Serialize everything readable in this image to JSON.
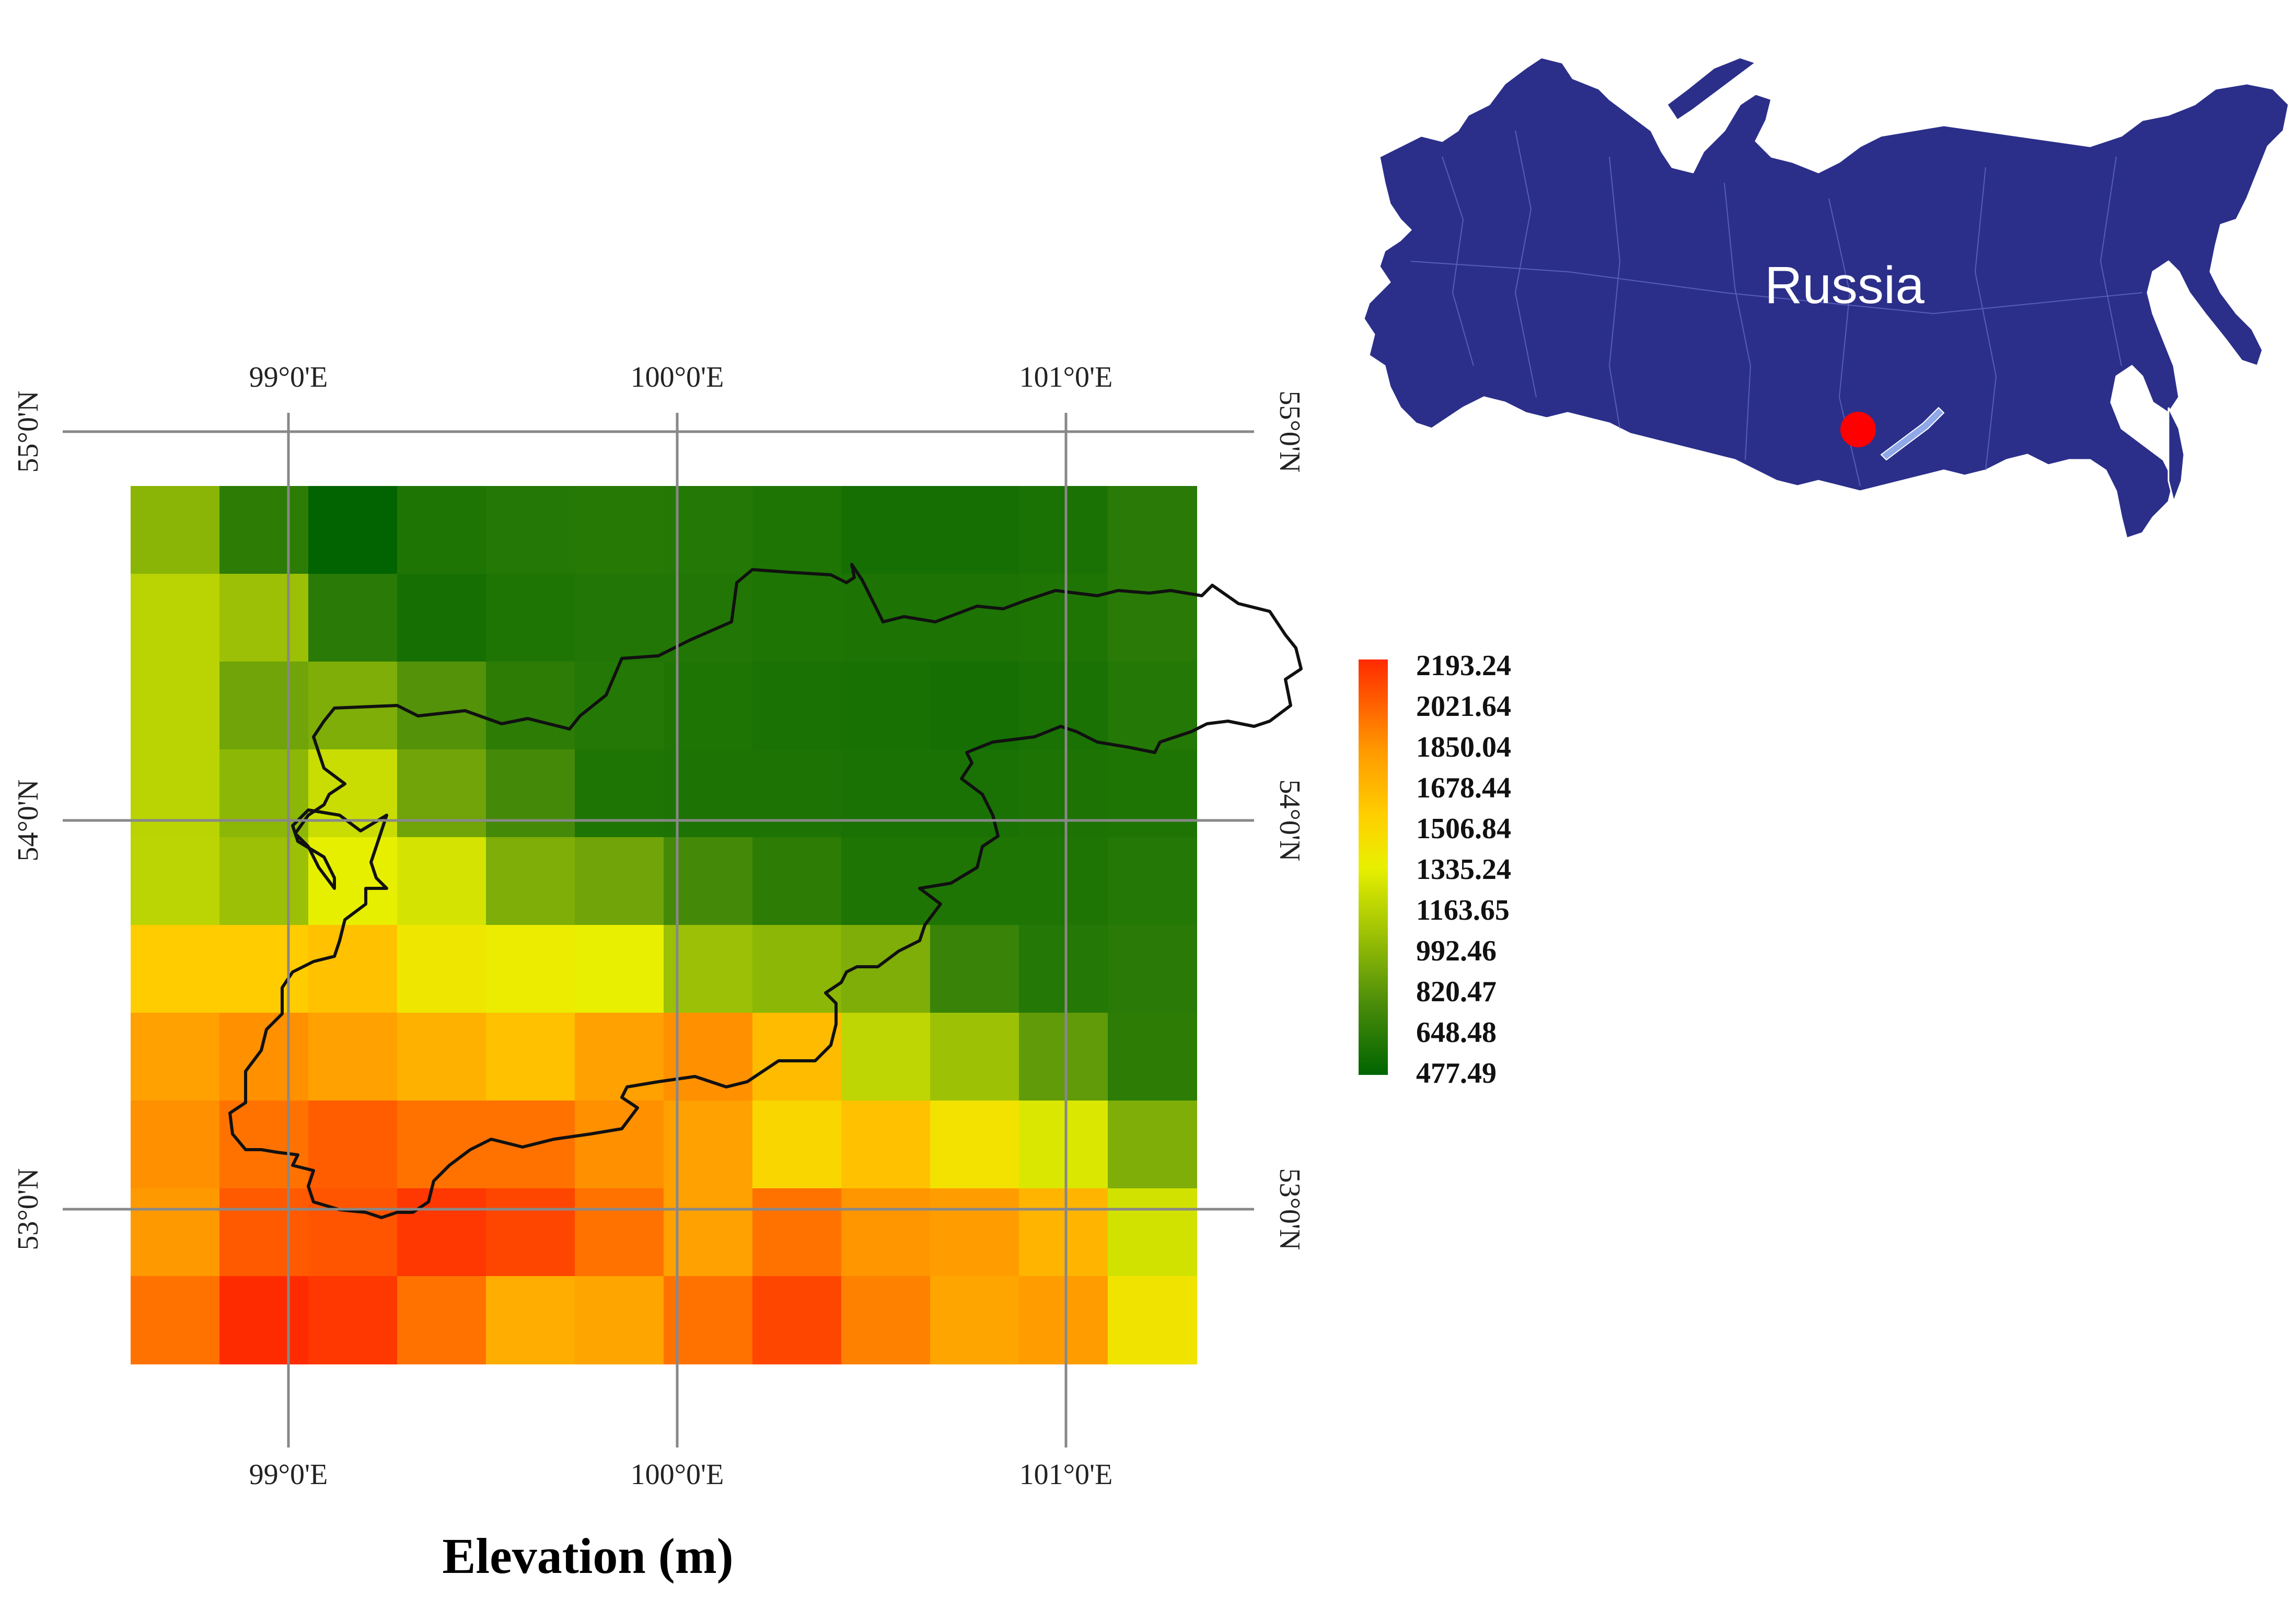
{
  "map": {
    "title": "Elevation (m)",
    "x_axis_ticks": [
      "99°0'E",
      "100°0'E",
      "101°0'E"
    ],
    "y_axis_ticks": [
      "55°0'N",
      "54°0'N",
      "53°0'N"
    ],
    "grid_values": [
      [
        992,
        650,
        480,
        600,
        620,
        630,
        620,
        600,
        560,
        560,
        580,
        640
      ],
      [
        1160,
        1050,
        640,
        560,
        600,
        610,
        610,
        600,
        590,
        590,
        600,
        640
      ],
      [
        1160,
        900,
        950,
        800,
        650,
        620,
        600,
        580,
        570,
        560,
        580,
        620
      ],
      [
        1160,
        1000,
        1220,
        900,
        750,
        600,
        590,
        590,
        580,
        580,
        590,
        600
      ],
      [
        1170,
        1050,
        1330,
        1260,
        950,
        900,
        750,
        650,
        600,
        600,
        600,
        620
      ],
      [
        1560,
        1560,
        1620,
        1400,
        1360,
        1340,
        1050,
        1000,
        950,
        700,
        620,
        640
      ],
      [
        1780,
        1850,
        1780,
        1700,
        1620,
        1780,
        1850,
        1650,
        1180,
        1060,
        850,
        650
      ],
      [
        1850,
        1950,
        2020,
        1950,
        1950,
        1850,
        1780,
        1500,
        1620,
        1430,
        1280,
        950
      ],
      [
        1820,
        2030,
        2050,
        2150,
        2100,
        1950,
        1780,
        1950,
        1830,
        1800,
        1680,
        1250
      ],
      [
        1950,
        2190,
        2150,
        1950,
        1720,
        1760,
        1950,
        2100,
        1900,
        1760,
        1800,
        1420
      ]
    ]
  },
  "legend": {
    "labels": [
      "2193.24",
      "2021.64",
      "1850.04",
      "1678.44",
      "1506.84",
      "1335.24",
      "1163.65",
      "992.46",
      "820.47",
      "648.48",
      "477.49"
    ],
    "min": 477.49,
    "max": 2193.24,
    "color_stops": [
      "#006400",
      "#4a8c0a",
      "#99bf05",
      "#e8f000",
      "#ffd000",
      "#ff9a00",
      "#ff2a00"
    ]
  },
  "inset": {
    "country_label": "Russia",
    "land_color": "#2b2f8a",
    "lake_color": "#8fa8e8",
    "marker_color": "#ff0000",
    "background_color": "#ffffff"
  }
}
